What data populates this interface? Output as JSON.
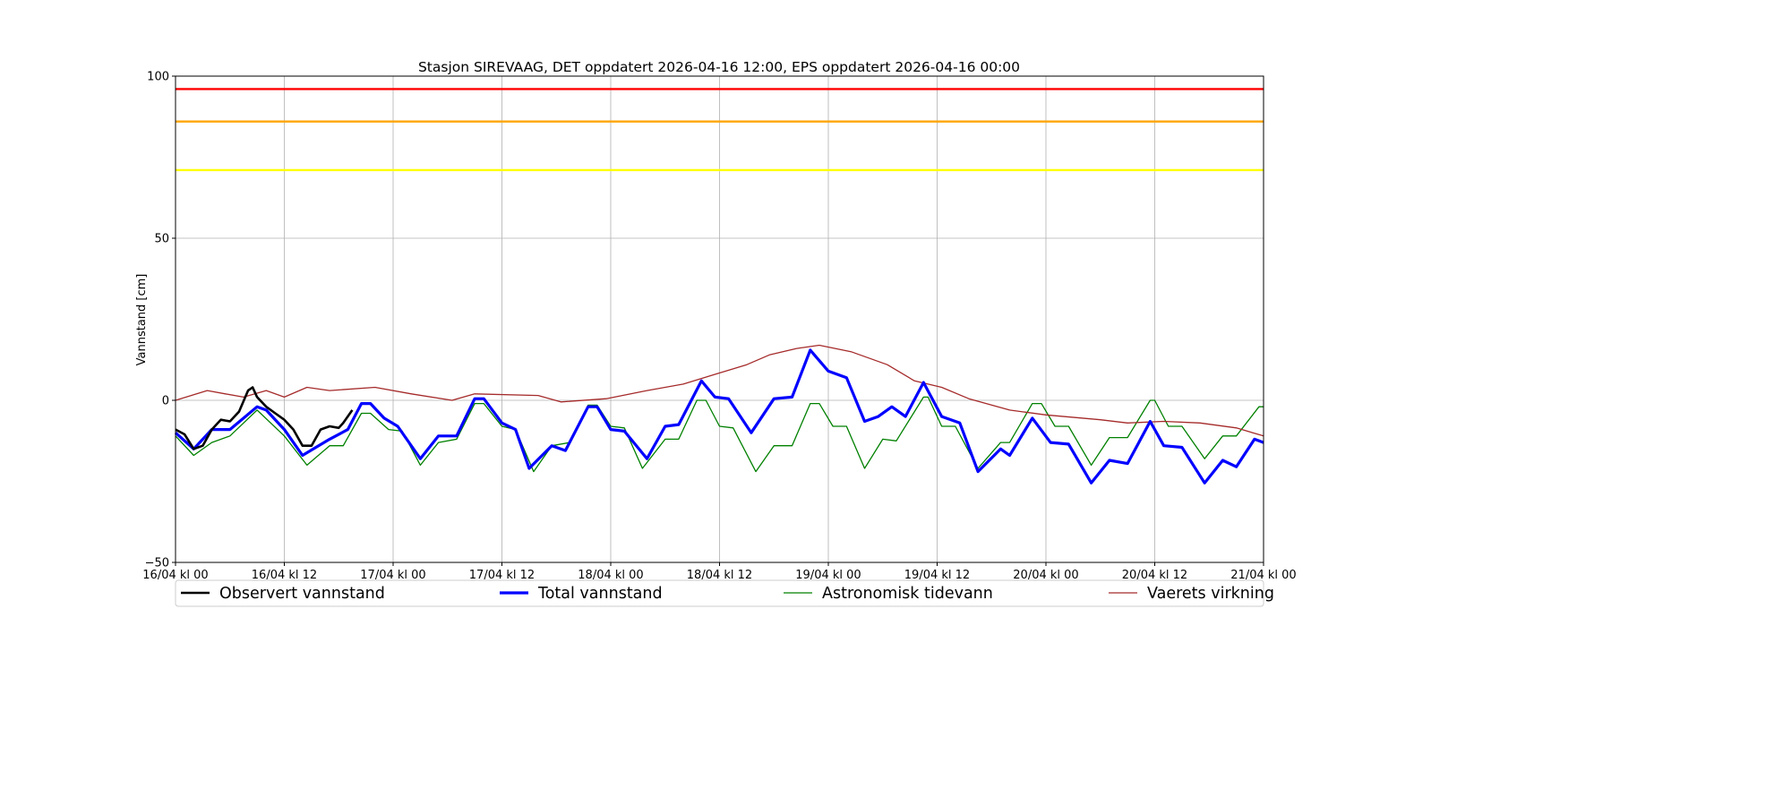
{
  "chart_data": {
    "type": "line",
    "title": "Stasjon SIREVAAG, DET oppdatert 2026-04-16 12:00, EPS oppdatert 2026-04-16 00:00",
    "xlabel": "",
    "ylabel": "Vannstand [cm]",
    "xlim": [
      "2026-04-16 00:00",
      "2026-04-21 00:00"
    ],
    "ylim": [
      -50,
      100
    ],
    "grid": true,
    "legend_placement": "bottom",
    "yticks": [
      {
        "value": -50,
        "label": "−50"
      },
      {
        "value": 0,
        "label": "0"
      },
      {
        "value": 50,
        "label": "50"
      },
      {
        "value": 100,
        "label": "100"
      }
    ],
    "xticks": [
      {
        "value": "2026-04-16 00:00",
        "label": "16/04 kl 00"
      },
      {
        "value": "2026-04-16 12:00",
        "label": "16/04 kl 12"
      },
      {
        "value": "2026-04-17 00:00",
        "label": "17/04 kl 00"
      },
      {
        "value": "2026-04-17 12:00",
        "label": "17/04 kl 12"
      },
      {
        "value": "2026-04-18 00:00",
        "label": "18/04 kl 00"
      },
      {
        "value": "2026-04-18 12:00",
        "label": "18/04 kl 12"
      },
      {
        "value": "2026-04-19 00:00",
        "label": "19/04 kl 00"
      },
      {
        "value": "2026-04-19 12:00",
        "label": "19/04 kl 12"
      },
      {
        "value": "2026-04-20 00:00",
        "label": "20/04 kl 00"
      },
      {
        "value": "2026-04-20 12:00",
        "label": "20/04 kl 12"
      },
      {
        "value": "2026-04-21 00:00",
        "label": "21/04 kl 00"
      }
    ],
    "thresholds": [
      {
        "value": 96,
        "color": "#ff0000"
      },
      {
        "value": 86,
        "color": "#ffa500"
      },
      {
        "value": 71,
        "color": "#ffff00"
      }
    ],
    "series": [
      {
        "name": "Observert vannstand",
        "color": "#000000",
        "width": 2.6,
        "points": [
          [
            "2026-04-16 00:00",
            -9
          ],
          [
            "2026-04-16 01:00",
            -10.5
          ],
          [
            "2026-04-16 02:00",
            -15
          ],
          [
            "2026-04-16 03:00",
            -14
          ],
          [
            "2026-04-16 04:00",
            -9
          ],
          [
            "2026-04-16 05:00",
            -6
          ],
          [
            "2026-04-16 06:00",
            -6.5
          ],
          [
            "2026-04-16 07:00",
            -3.5
          ],
          [
            "2026-04-16 08:00",
            3
          ],
          [
            "2026-04-16 08:30",
            4
          ],
          [
            "2026-04-16 09:00",
            1
          ],
          [
            "2026-04-16 10:00",
            -2
          ],
          [
            "2026-04-16 11:00",
            -4
          ],
          [
            "2026-04-16 12:00",
            -6
          ],
          [
            "2026-04-16 13:00",
            -9
          ],
          [
            "2026-04-16 14:00",
            -14
          ],
          [
            "2026-04-16 15:00",
            -14
          ],
          [
            "2026-04-16 16:00",
            -9
          ],
          [
            "2026-04-16 17:00",
            -8
          ],
          [
            "2026-04-16 18:00",
            -8.5
          ],
          [
            "2026-04-16 18:30",
            -7
          ],
          [
            "2026-04-16 19:30",
            -3
          ]
        ]
      },
      {
        "name": "Total vannstand",
        "color": "#0000ff",
        "width": 3.2,
        "points": [
          [
            "2026-04-16 00:00",
            -10
          ],
          [
            "2026-04-16 02:00",
            -15
          ],
          [
            "2026-04-16 04:00",
            -9
          ],
          [
            "2026-04-16 06:00",
            -9
          ],
          [
            "2026-04-16 09:00",
            -2
          ],
          [
            "2026-04-16 10:00",
            -3
          ],
          [
            "2026-04-16 12:00",
            -9
          ],
          [
            "2026-04-16 14:00",
            -17
          ],
          [
            "2026-04-16 17:00",
            -12
          ],
          [
            "2026-04-16 19:00",
            -9
          ],
          [
            "2026-04-16 20:30",
            -1
          ],
          [
            "2026-04-16 21:30",
            -1
          ],
          [
            "2026-04-16 23:00",
            -5.5
          ],
          [
            "2026-04-17 00:30",
            -8
          ],
          [
            "2026-04-17 03:00",
            -18
          ],
          [
            "2026-04-17 05:00",
            -11
          ],
          [
            "2026-04-17 07:00",
            -11
          ],
          [
            "2026-04-17 09:00",
            0.5
          ],
          [
            "2026-04-17 10:00",
            0.5
          ],
          [
            "2026-04-17 12:00",
            -7
          ],
          [
            "2026-04-17 13:30",
            -9
          ],
          [
            "2026-04-17 15:00",
            -21
          ],
          [
            "2026-04-17 17:30",
            -14
          ],
          [
            "2026-04-17 19:00",
            -15.5
          ],
          [
            "2026-04-17 21:30",
            -2
          ],
          [
            "2026-04-17 22:30",
            -2
          ],
          [
            "2026-04-18 00:00",
            -9
          ],
          [
            "2026-04-18 01:30",
            -9.5
          ],
          [
            "2026-04-18 04:00",
            -18
          ],
          [
            "2026-04-18 06:00",
            -8
          ],
          [
            "2026-04-18 07:30",
            -7.5
          ],
          [
            "2026-04-18 10:00",
            6
          ],
          [
            "2026-04-18 11:30",
            1
          ],
          [
            "2026-04-18 13:00",
            0.5
          ],
          [
            "2026-04-18 15:30",
            -10
          ],
          [
            "2026-04-18 18:00",
            0.5
          ],
          [
            "2026-04-18 20:00",
            1
          ],
          [
            "2026-04-18 22:00",
            15.5
          ],
          [
            "2026-04-19 00:00",
            9
          ],
          [
            "2026-04-19 02:00",
            7
          ],
          [
            "2026-04-19 04:00",
            -6.5
          ],
          [
            "2026-04-19 05:30",
            -5
          ],
          [
            "2026-04-19 07:00",
            -2
          ],
          [
            "2026-04-19 08:30",
            -5
          ],
          [
            "2026-04-19 10:30",
            5.5
          ],
          [
            "2026-04-19 12:30",
            -5
          ],
          [
            "2026-04-19 14:30",
            -7
          ],
          [
            "2026-04-19 16:30",
            -22
          ],
          [
            "2026-04-19 19:00",
            -15
          ],
          [
            "2026-04-19 20:00",
            -17
          ],
          [
            "2026-04-19 22:30",
            -5.5
          ],
          [
            "2026-04-20 00:30",
            -13
          ],
          [
            "2026-04-20 02:30",
            -13.5
          ],
          [
            "2026-04-20 05:00",
            -25.5
          ],
          [
            "2026-04-20 07:00",
            -18.5
          ],
          [
            "2026-04-20 09:00",
            -19.5
          ],
          [
            "2026-04-20 11:30",
            -6.5
          ],
          [
            "2026-04-20 13:00",
            -14
          ],
          [
            "2026-04-20 15:00",
            -14.5
          ],
          [
            "2026-04-20 17:30",
            -25.5
          ],
          [
            "2026-04-20 19:30",
            -18.5
          ],
          [
            "2026-04-20 21:00",
            -20.5
          ],
          [
            "2026-04-20 23:00",
            -12
          ],
          [
            "2026-04-21 00:00",
            -13
          ]
        ]
      },
      {
        "name": "Astronomisk tidevann",
        "color": "#008000",
        "width": 1.3,
        "points": [
          [
            "2026-04-16 00:00",
            -11
          ],
          [
            "2026-04-16 02:00",
            -17
          ],
          [
            "2026-04-16 04:00",
            -13
          ],
          [
            "2026-04-16 06:00",
            -11
          ],
          [
            "2026-04-16 09:00",
            -3
          ],
          [
            "2026-04-16 12:00",
            -11
          ],
          [
            "2026-04-16 14:30",
            -20
          ],
          [
            "2026-04-16 17:00",
            -14
          ],
          [
            "2026-04-16 18:30",
            -14
          ],
          [
            "2026-04-16 20:30",
            -4
          ],
          [
            "2026-04-16 21:30",
            -4
          ],
          [
            "2026-04-16 23:30",
            -9
          ],
          [
            "2026-04-17 01:00",
            -9.5
          ],
          [
            "2026-04-17 03:00",
            -20
          ],
          [
            "2026-04-17 05:00",
            -13
          ],
          [
            "2026-04-17 07:00",
            -12
          ],
          [
            "2026-04-17 09:00",
            -1
          ],
          [
            "2026-04-17 10:00",
            -1
          ],
          [
            "2026-04-17 12:00",
            -8
          ],
          [
            "2026-04-17 13:30",
            -9
          ],
          [
            "2026-04-17 15:30",
            -22
          ],
          [
            "2026-04-17 17:30",
            -14
          ],
          [
            "2026-04-17 19:30",
            -13
          ],
          [
            "2026-04-17 21:30",
            -1.5
          ],
          [
            "2026-04-17 22:30",
            -1.5
          ],
          [
            "2026-04-18 00:00",
            -8
          ],
          [
            "2026-04-18 01:30",
            -8.5
          ],
          [
            "2026-04-18 03:30",
            -21
          ],
          [
            "2026-04-18 06:00",
            -12
          ],
          [
            "2026-04-18 07:30",
            -12
          ],
          [
            "2026-04-18 09:30",
            0
          ],
          [
            "2026-04-18 10:30",
            0
          ],
          [
            "2026-04-18 12:00",
            -8
          ],
          [
            "2026-04-18 13:30",
            -8.5
          ],
          [
            "2026-04-18 16:00",
            -22
          ],
          [
            "2026-04-18 18:00",
            -14
          ],
          [
            "2026-04-18 20:00",
            -14
          ],
          [
            "2026-04-18 22:00",
            -1
          ],
          [
            "2026-04-18 23:00",
            -1
          ],
          [
            "2026-04-19 00:30",
            -8
          ],
          [
            "2026-04-19 02:00",
            -8
          ],
          [
            "2026-04-19 04:00",
            -21
          ],
          [
            "2026-04-19 06:00",
            -12
          ],
          [
            "2026-04-19 07:30",
            -12.5
          ],
          [
            "2026-04-19 10:30",
            1
          ],
          [
            "2026-04-19 11:00",
            1
          ],
          [
            "2026-04-19 12:30",
            -8
          ],
          [
            "2026-04-19 14:00",
            -8
          ],
          [
            "2026-04-19 16:30",
            -21
          ],
          [
            "2026-04-19 19:00",
            -13
          ],
          [
            "2026-04-19 20:00",
            -13
          ],
          [
            "2026-04-19 22:30",
            -1
          ],
          [
            "2026-04-19 23:30",
            -1
          ],
          [
            "2026-04-20 01:00",
            -8
          ],
          [
            "2026-04-20 02:30",
            -8
          ],
          [
            "2026-04-20 05:00",
            -20
          ],
          [
            "2026-04-20 07:00",
            -11.5
          ],
          [
            "2026-04-20 09:00",
            -11.5
          ],
          [
            "2026-04-20 11:30",
            0
          ],
          [
            "2026-04-20 12:00",
            0
          ],
          [
            "2026-04-20 13:30",
            -8
          ],
          [
            "2026-04-20 15:00",
            -8
          ],
          [
            "2026-04-20 17:30",
            -18
          ],
          [
            "2026-04-20 19:30",
            -11
          ],
          [
            "2026-04-20 21:00",
            -11
          ],
          [
            "2026-04-20 23:30",
            -2
          ],
          [
            "2026-04-21 00:00",
            -2
          ]
        ]
      },
      {
        "name": "Vaerets virkning",
        "color": "#a52a2a",
        "width": 1.3,
        "points": [
          [
            "2026-04-16 00:00",
            0
          ],
          [
            "2026-04-16 03:30",
            3
          ],
          [
            "2026-04-16 05:30",
            2
          ],
          [
            "2026-04-16 07:30",
            1
          ],
          [
            "2026-04-16 10:00",
            3
          ],
          [
            "2026-04-16 12:00",
            1
          ],
          [
            "2026-04-16 14:30",
            4
          ],
          [
            "2026-04-16 17:00",
            3
          ],
          [
            "2026-04-16 22:00",
            4
          ],
          [
            "2026-04-17 02:00",
            2
          ],
          [
            "2026-04-17 06:30",
            0
          ],
          [
            "2026-04-17 09:00",
            2
          ],
          [
            "2026-04-17 16:00",
            1.5
          ],
          [
            "2026-04-17 18:30",
            -0.5
          ],
          [
            "2026-04-17 23:30",
            0.5
          ],
          [
            "2026-04-18 04:00",
            3
          ],
          [
            "2026-04-18 08:00",
            5
          ],
          [
            "2026-04-18 11:30",
            8
          ],
          [
            "2026-04-18 15:00",
            11
          ],
          [
            "2026-04-18 17:30",
            14
          ],
          [
            "2026-04-18 20:30",
            16
          ],
          [
            "2026-04-18 23:00",
            17
          ],
          [
            "2026-04-19 02:30",
            15
          ],
          [
            "2026-04-19 06:30",
            11
          ],
          [
            "2026-04-19 09:30",
            6
          ],
          [
            "2026-04-19 12:30",
            4
          ],
          [
            "2026-04-19 15:30",
            0.5
          ],
          [
            "2026-04-19 20:00",
            -3
          ],
          [
            "2026-04-20 00:00",
            -4.5
          ],
          [
            "2026-04-20 06:00",
            -6
          ],
          [
            "2026-04-20 09:00",
            -7
          ],
          [
            "2026-04-20 13:00",
            -6.5
          ],
          [
            "2026-04-20 17:00",
            -7
          ],
          [
            "2026-04-20 21:00",
            -8.5
          ],
          [
            "2026-04-21 00:00",
            -11
          ]
        ]
      }
    ]
  }
}
